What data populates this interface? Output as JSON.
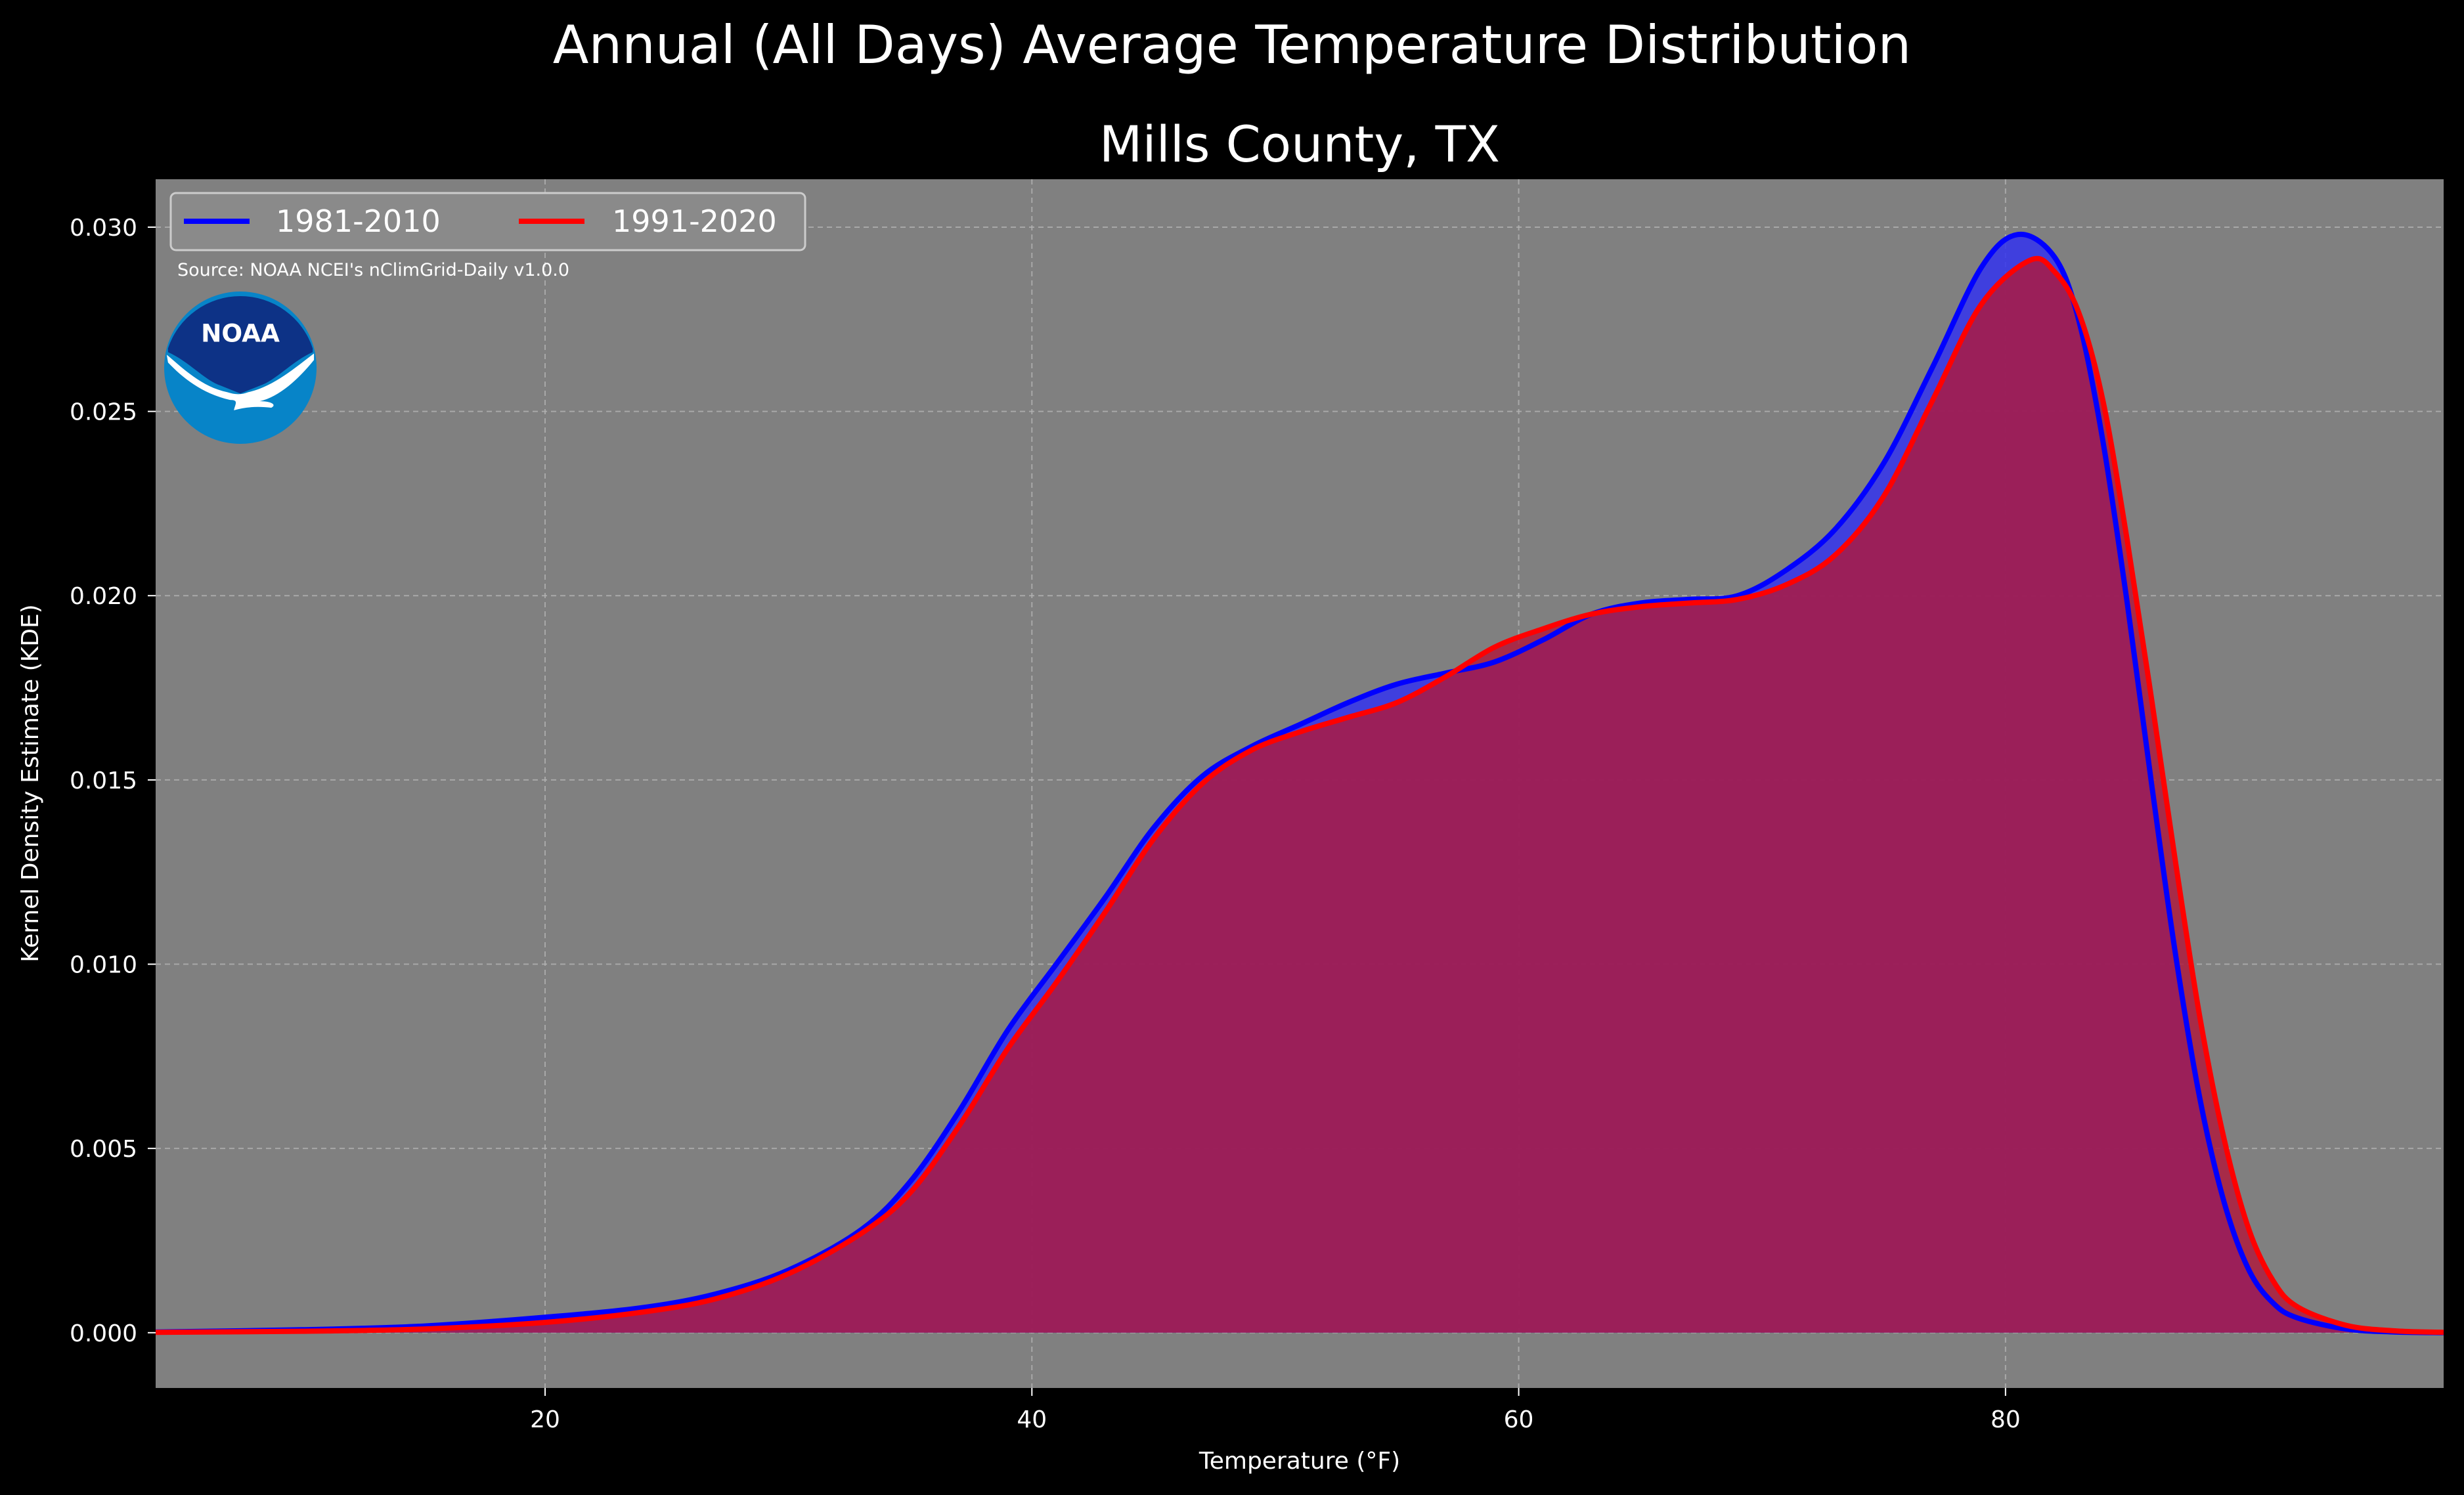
{
  "title": "Annual (All Days) Average Temperature Distribution",
  "subtitle": "Mills County, TX",
  "source_note": "Source: NOAA NCEI's nClimGrid-Daily v1.0.0",
  "logo": {
    "text": "NOAA",
    "icon": "noaa-logo-icon",
    "outer_color": "#0784c8",
    "inner_color": "#0d3286"
  },
  "colors": {
    "background": "#000000",
    "plot_bg": "#808080",
    "text": "#ffffff",
    "grid": "#b3b3b3",
    "series_1": "#0000ff",
    "series_2": "#ff0000"
  },
  "chart_data": {
    "type": "area",
    "xlabel": "Temperature (°F)",
    "ylabel": "Kernel Density Estimate (KDE)",
    "xlim": [
      4,
      98
    ],
    "ylim": [
      -0.0015,
      0.0313
    ],
    "xticks": [
      20,
      40,
      60,
      80
    ],
    "yticks": [
      0.0,
      0.005,
      0.01,
      0.015,
      0.02,
      0.025,
      0.03
    ],
    "ytick_labels": [
      "0.000",
      "0.005",
      "0.010",
      "0.015",
      "0.020",
      "0.025",
      "0.030"
    ],
    "grid": true,
    "legend": {
      "position": "top-left",
      "ncol": 2
    },
    "series": [
      {
        "name": "1981-2010",
        "color": "#0000ff",
        "fill": "#3434ee",
        "points": [
          [
            4,
            2e-05
          ],
          [
            10,
            8e-05
          ],
          [
            15,
            0.00018
          ],
          [
            20,
            0.00042
          ],
          [
            24,
            0.00068
          ],
          [
            27,
            0.00105
          ],
          [
            30,
            0.0017
          ],
          [
            33,
            0.0028
          ],
          [
            35,
            0.0041
          ],
          [
            37,
            0.006
          ],
          [
            39,
            0.0082
          ],
          [
            41,
            0.01
          ],
          [
            43,
            0.0118
          ],
          [
            45,
            0.0137
          ],
          [
            47,
            0.0151
          ],
          [
            49,
            0.0159
          ],
          [
            51,
            0.0165
          ],
          [
            53,
            0.0171
          ],
          [
            55,
            0.0176
          ],
          [
            57,
            0.0179
          ],
          [
            59,
            0.0182
          ],
          [
            61,
            0.0188
          ],
          [
            63,
            0.0195
          ],
          [
            65,
            0.0198
          ],
          [
            67,
            0.0199
          ],
          [
            69,
            0.02
          ],
          [
            71,
            0.0207
          ],
          [
            73,
            0.0218
          ],
          [
            75,
            0.0236
          ],
          [
            77,
            0.0262
          ],
          [
            79,
            0.0289
          ],
          [
            80.5,
            0.0298
          ],
          [
            82,
            0.0292
          ],
          [
            83,
            0.0275
          ],
          [
            84,
            0.0242
          ],
          [
            85,
            0.0198
          ],
          [
            86,
            0.0149
          ],
          [
            87,
            0.0102
          ],
          [
            88,
            0.0063
          ],
          [
            89,
            0.0035
          ],
          [
            90,
            0.0017
          ],
          [
            91,
            0.0008
          ],
          [
            92,
            0.0004
          ],
          [
            94,
            0.0001
          ],
          [
            96,
            2e-05
          ],
          [
            98,
            0.0
          ]
        ]
      },
      {
        "name": "1991-2020",
        "color": "#ff0000",
        "fill": "#b0183c",
        "points": [
          [
            4,
            1e-05
          ],
          [
            10,
            4e-05
          ],
          [
            15,
            0.0001
          ],
          [
            20,
            0.00028
          ],
          [
            24,
            0.00056
          ],
          [
            27,
            0.00092
          ],
          [
            30,
            0.0016
          ],
          [
            33,
            0.0027
          ],
          [
            35,
            0.0038
          ],
          [
            37,
            0.0056
          ],
          [
            39,
            0.0077
          ],
          [
            41,
            0.0095
          ],
          [
            43,
            0.0114
          ],
          [
            45,
            0.0134
          ],
          [
            47,
            0.0149
          ],
          [
            49,
            0.0158
          ],
          [
            51,
            0.0163
          ],
          [
            53,
            0.0167
          ],
          [
            55,
            0.0171
          ],
          [
            57,
            0.0178
          ],
          [
            59,
            0.0186
          ],
          [
            61,
            0.0191
          ],
          [
            63,
            0.0195
          ],
          [
            65,
            0.0197
          ],
          [
            67,
            0.0198
          ],
          [
            69,
            0.0199
          ],
          [
            71,
            0.0203
          ],
          [
            73,
            0.0211
          ],
          [
            75,
            0.0227
          ],
          [
            77,
            0.0253
          ],
          [
            79,
            0.0279
          ],
          [
            81,
            0.0291
          ],
          [
            82,
            0.0288
          ],
          [
            83,
            0.0277
          ],
          [
            84,
            0.0253
          ],
          [
            85,
            0.0215
          ],
          [
            86,
            0.0172
          ],
          [
            87,
            0.0127
          ],
          [
            88,
            0.0085
          ],
          [
            89,
            0.0052
          ],
          [
            90,
            0.0028
          ],
          [
            91,
            0.0014
          ],
          [
            92,
            0.0007
          ],
          [
            94,
            0.0002
          ],
          [
            96,
            5e-05
          ],
          [
            98,
            1e-05
          ]
        ]
      }
    ]
  }
}
